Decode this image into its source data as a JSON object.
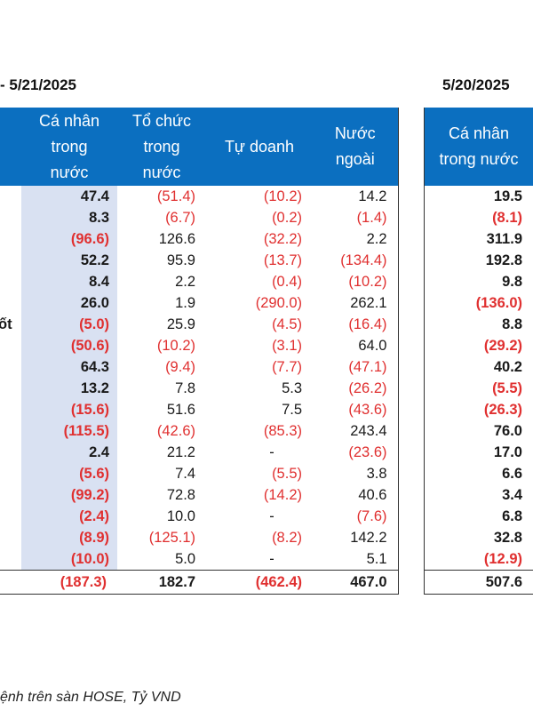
{
  "dates": {
    "left": "- 5/21/2025",
    "right": "5/20/2025"
  },
  "left_headers": [
    "Cá nhân\ntrong\nnước",
    "Tổ chức\ntrong\nnước",
    "Tự doanh",
    "Nước\nngoài"
  ],
  "right_header": "Cá nhân\ntrong nước",
  "rows": [
    {
      "label": "",
      "indiv": "47.4",
      "org": "(51.4)",
      "prop": "(10.2)",
      "foreign": "14.2",
      "prev": "19.5"
    },
    {
      "label": "",
      "indiv": "8.3",
      "org": "(6.7)",
      "prop": "(0.2)",
      "foreign": "(1.4)",
      "prev": "(8.1)"
    },
    {
      "label": "",
      "indiv": "(96.6)",
      "org": "126.6",
      "prop": "(32.2)",
      "foreign": "2.2",
      "prev": "311.9"
    },
    {
      "label": "",
      "indiv": "52.2",
      "org": "95.9",
      "prop": "(13.7)",
      "foreign": "(134.4)",
      "prev": "192.8"
    },
    {
      "label": "",
      "indiv": "8.4",
      "org": "2.2",
      "prop": "(0.4)",
      "foreign": "(10.2)",
      "prev": "9.8"
    },
    {
      "label": "",
      "indiv": "26.0",
      "org": "1.9",
      "prop": "(290.0)",
      "foreign": "262.1",
      "prev": "(136.0)"
    },
    {
      "label": "ốt",
      "indiv": "(5.0)",
      "org": "25.9",
      "prop": "(4.5)",
      "foreign": "(16.4)",
      "prev": "8.8"
    },
    {
      "label": "",
      "indiv": "(50.6)",
      "org": "(10.2)",
      "prop": "(3.1)",
      "foreign": "64.0",
      "prev": "(29.2)"
    },
    {
      "label": "",
      "indiv": "64.3",
      "org": "(9.4)",
      "prop": "(7.7)",
      "foreign": "(47.1)",
      "prev": "40.2"
    },
    {
      "label": "",
      "indiv": "13.2",
      "org": "7.8",
      "prop": "5.3",
      "foreign": "(26.2)",
      "prev": "(5.5)"
    },
    {
      "label": "",
      "indiv": "(15.6)",
      "org": "51.6",
      "prop": "7.5",
      "foreign": "(43.6)",
      "prev": "(26.3)"
    },
    {
      "label": "",
      "indiv": "(115.5)",
      "org": "(42.6)",
      "prop": "(85.3)",
      "foreign": "243.4",
      "prev": "76.0"
    },
    {
      "label": "",
      "indiv": "2.4",
      "org": "21.2",
      "prop": "-",
      "foreign": "(23.6)",
      "prev": "17.0"
    },
    {
      "label": "",
      "indiv": "(5.6)",
      "org": "7.4",
      "prop": "(5.5)",
      "foreign": "3.8",
      "prev": "6.6"
    },
    {
      "label": "",
      "indiv": "(99.2)",
      "org": "72.8",
      "prop": "(14.2)",
      "foreign": "40.6",
      "prev": "3.4"
    },
    {
      "label": "",
      "indiv": "(2.4)",
      "org": "10.0",
      "prop": "-",
      "foreign": "(7.6)",
      "prev": "6.8"
    },
    {
      "label": "",
      "indiv": "(8.9)",
      "org": "(125.1)",
      "prop": "(8.2)",
      "foreign": "142.2",
      "prev": "32.8"
    },
    {
      "label": "",
      "indiv": "(10.0)",
      "org": "5.0",
      "prop": "-",
      "foreign": "5.1",
      "prev": "(12.9)"
    }
  ],
  "total": {
    "indiv": "(187.3)",
    "org": "182.7",
    "prop": "(462.4)",
    "foreign": "467.0",
    "prev": "507.6"
  },
  "footnote": "ệnh trên sàn HOSE, Tỷ VND",
  "colors": {
    "header_bg": "#0b6fc0",
    "individual_col_bg": "#d9e1f2",
    "negative": "#e03030"
  }
}
